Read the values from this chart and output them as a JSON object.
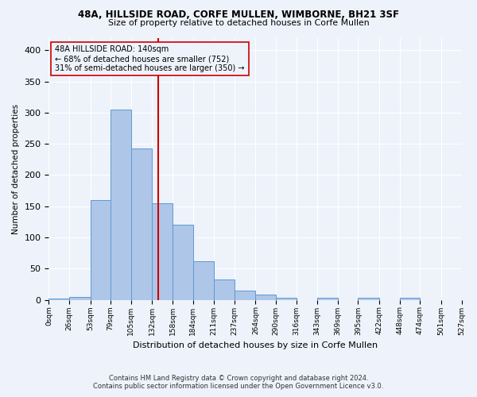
{
  "title_line1": "48A, HILLSIDE ROAD, CORFE MULLEN, WIMBORNE, BH21 3SF",
  "title_line2": "Size of property relative to detached houses in Corfe Mullen",
  "xlabel": "Distribution of detached houses by size in Corfe Mullen",
  "ylabel": "Number of detached properties",
  "footer_line1": "Contains HM Land Registry data © Crown copyright and database right 2024.",
  "footer_line2": "Contains public sector information licensed under the Open Government Licence v3.0.",
  "annotation_title": "48A HILLSIDE ROAD: 140sqm",
  "annotation_line2": "← 68% of detached houses are smaller (752)",
  "annotation_line3": "31% of semi-detached houses are larger (350) →",
  "property_size": 140,
  "bin_edges": [
    0,
    26,
    53,
    79,
    105,
    132,
    158,
    184,
    211,
    237,
    264,
    290,
    316,
    343,
    369,
    395,
    422,
    448,
    474,
    501,
    527
  ],
  "bar_heights": [
    2,
    5,
    160,
    305,
    243,
    155,
    120,
    62,
    32,
    15,
    8,
    3,
    0,
    4,
    0,
    4,
    0,
    4,
    0,
    0
  ],
  "bar_color": "#aec6e8",
  "bar_edge_color": "#5b9bd5",
  "vline_color": "#cc0000",
  "vline_x": 140,
  "annotation_box_color": "#cc0000",
  "background_color": "#eef2fa",
  "ylim": [
    0,
    420
  ],
  "yticks": [
    0,
    50,
    100,
    150,
    200,
    250,
    300,
    350,
    400
  ],
  "figsize": [
    6.0,
    5.0
  ],
  "dpi": 100
}
